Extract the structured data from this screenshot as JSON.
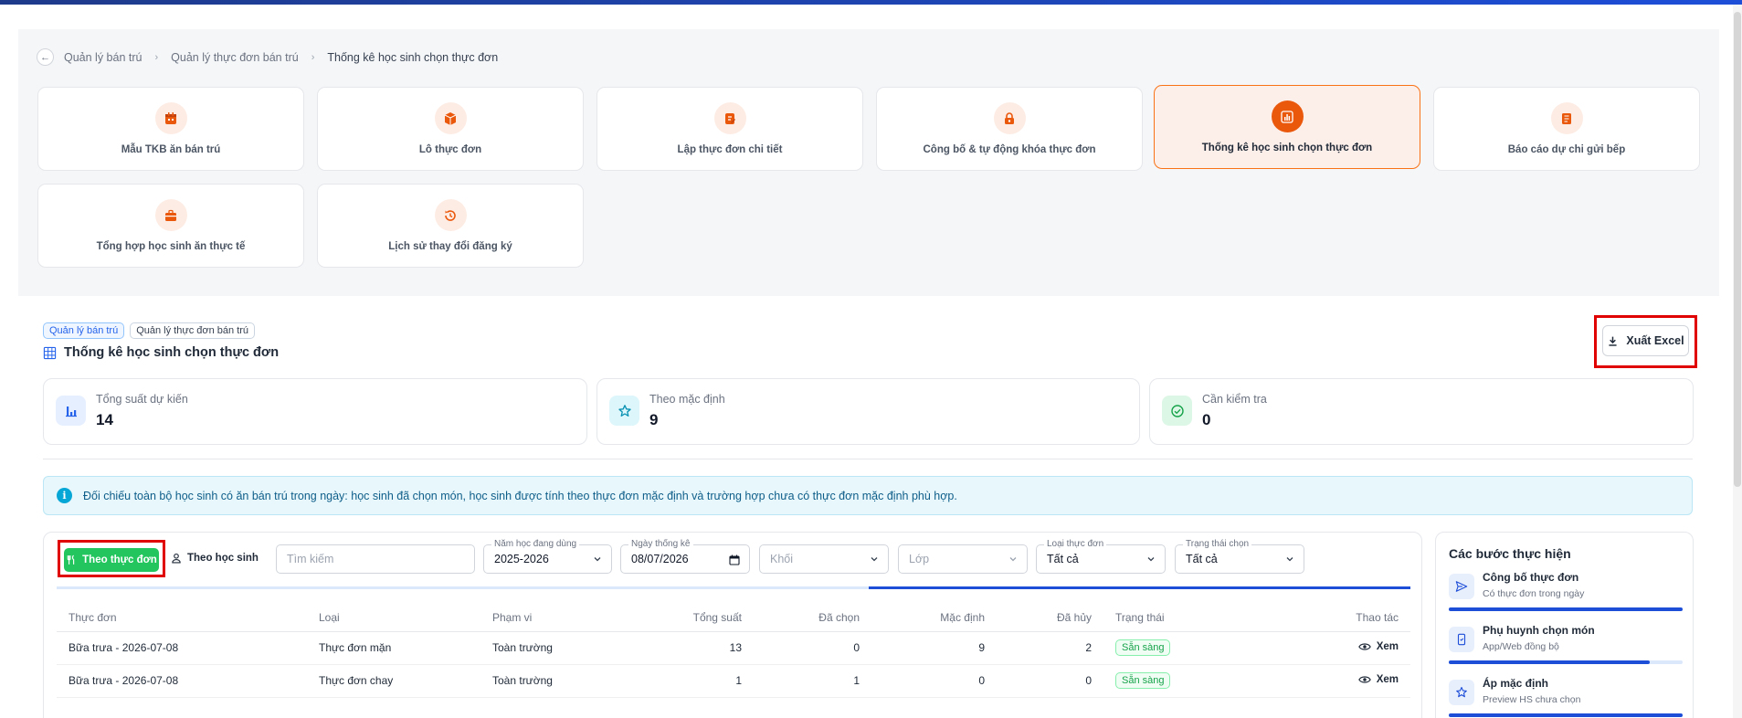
{
  "breadcrumb": {
    "items": [
      "Quản lý bán trú",
      "Quản lý thực đơn bán trú"
    ],
    "current": "Thống kê học sinh chọn thực đơn"
  },
  "modules": [
    {
      "label": "Mẫu TKB ăn bán trú",
      "icon": "calendar-icon"
    },
    {
      "label": "Lô thực đơn",
      "icon": "box-icon"
    },
    {
      "label": "Lập thực đơn chi tiết",
      "icon": "document-edit-icon"
    },
    {
      "label": "Công bố & tự động khóa thực đơn",
      "icon": "lock-icon"
    },
    {
      "label": "Thống kê học sinh chọn thực đơn",
      "icon": "chart-icon",
      "active": true
    },
    {
      "label": "Báo cáo dự chi gửi bếp",
      "icon": "report-icon"
    },
    {
      "label": "Tổng hợp học sinh ăn thực tế",
      "icon": "briefcase-icon"
    },
    {
      "label": "Lịch sử thay đổi đăng ký",
      "icon": "history-icon"
    }
  ],
  "tags": [
    "Quản lý bán trú",
    "Quản lý thực đơn bán trú"
  ],
  "page_title": "Thống kê học sinh chọn thực đơn",
  "export_label": "Xuất Excel",
  "stats": [
    {
      "label": "Tổng suất dự kiến",
      "value": "14",
      "icon": "bar-chart-icon",
      "color": "#2563eb"
    },
    {
      "label": "Theo mặc định",
      "value": "9",
      "icon": "star-icon",
      "color": "#0891b2"
    },
    {
      "label": "Cần kiểm tra",
      "value": "0",
      "icon": "check-circle-icon",
      "color": "#16a34a"
    }
  ],
  "info_text": "Đối chiếu toàn bộ học sinh có ăn bán trú trong ngày: học sinh đã chọn món, học sinh được tính theo thực đơn mặc định và trường hợp chưa có thực đơn mặc định phù hợp.",
  "toggle": {
    "by_menu": "Theo thực đơn",
    "by_student": "Theo học sinh"
  },
  "search": {
    "placeholder": "Tìm kiếm"
  },
  "filters": {
    "school_year": {
      "label": "Năm học đang dùng",
      "value": "2025-2026"
    },
    "date": {
      "label": "Ngày thống kê",
      "value": "08/07/2026"
    },
    "grade": {
      "placeholder": "Khối"
    },
    "class": {
      "placeholder": "Lớp"
    },
    "menu_type": {
      "label": "Loại thực đơn",
      "value": "Tất cả"
    },
    "status": {
      "label": "Trạng thái chọn",
      "value": "Tất cả"
    }
  },
  "progress": 0.4,
  "table": {
    "headers": [
      "Thực đơn",
      "Loại",
      "Phạm vi",
      "Tổng suất",
      "Đã chọn",
      "Mặc định",
      "Đã hủy",
      "Trạng thái",
      "Thao tác"
    ],
    "rows": [
      {
        "menu": "Bữa trưa - 2026-07-08",
        "type": "Thực đơn mặn",
        "scope": "Toàn trường",
        "total": "13",
        "chosen": "0",
        "default": "9",
        "cancelled": "2",
        "status": "Sẵn sàng",
        "action": "Xem"
      },
      {
        "menu": "Bữa trưa - 2026-07-08",
        "type": "Thực đơn chay",
        "scope": "Toàn trường",
        "total": "1",
        "chosen": "1",
        "default": "0",
        "cancelled": "0",
        "status": "Sẵn sàng",
        "action": "Xem"
      }
    ]
  },
  "steps_panel": {
    "title": "Các bước thực hiện",
    "steps": [
      {
        "title": "Công bố thực đơn",
        "sub": "Có thực đơn trong ngày",
        "icon": "send-icon",
        "progress": 1.0
      },
      {
        "title": "Phụ huynh chọn món",
        "sub": "App/Web đồng bộ",
        "icon": "phone-icon",
        "progress": 0.86
      },
      {
        "title": "Áp mặc định",
        "sub": "Preview HS chưa chọn",
        "icon": "star-icon",
        "progress": 1.0
      }
    ]
  }
}
